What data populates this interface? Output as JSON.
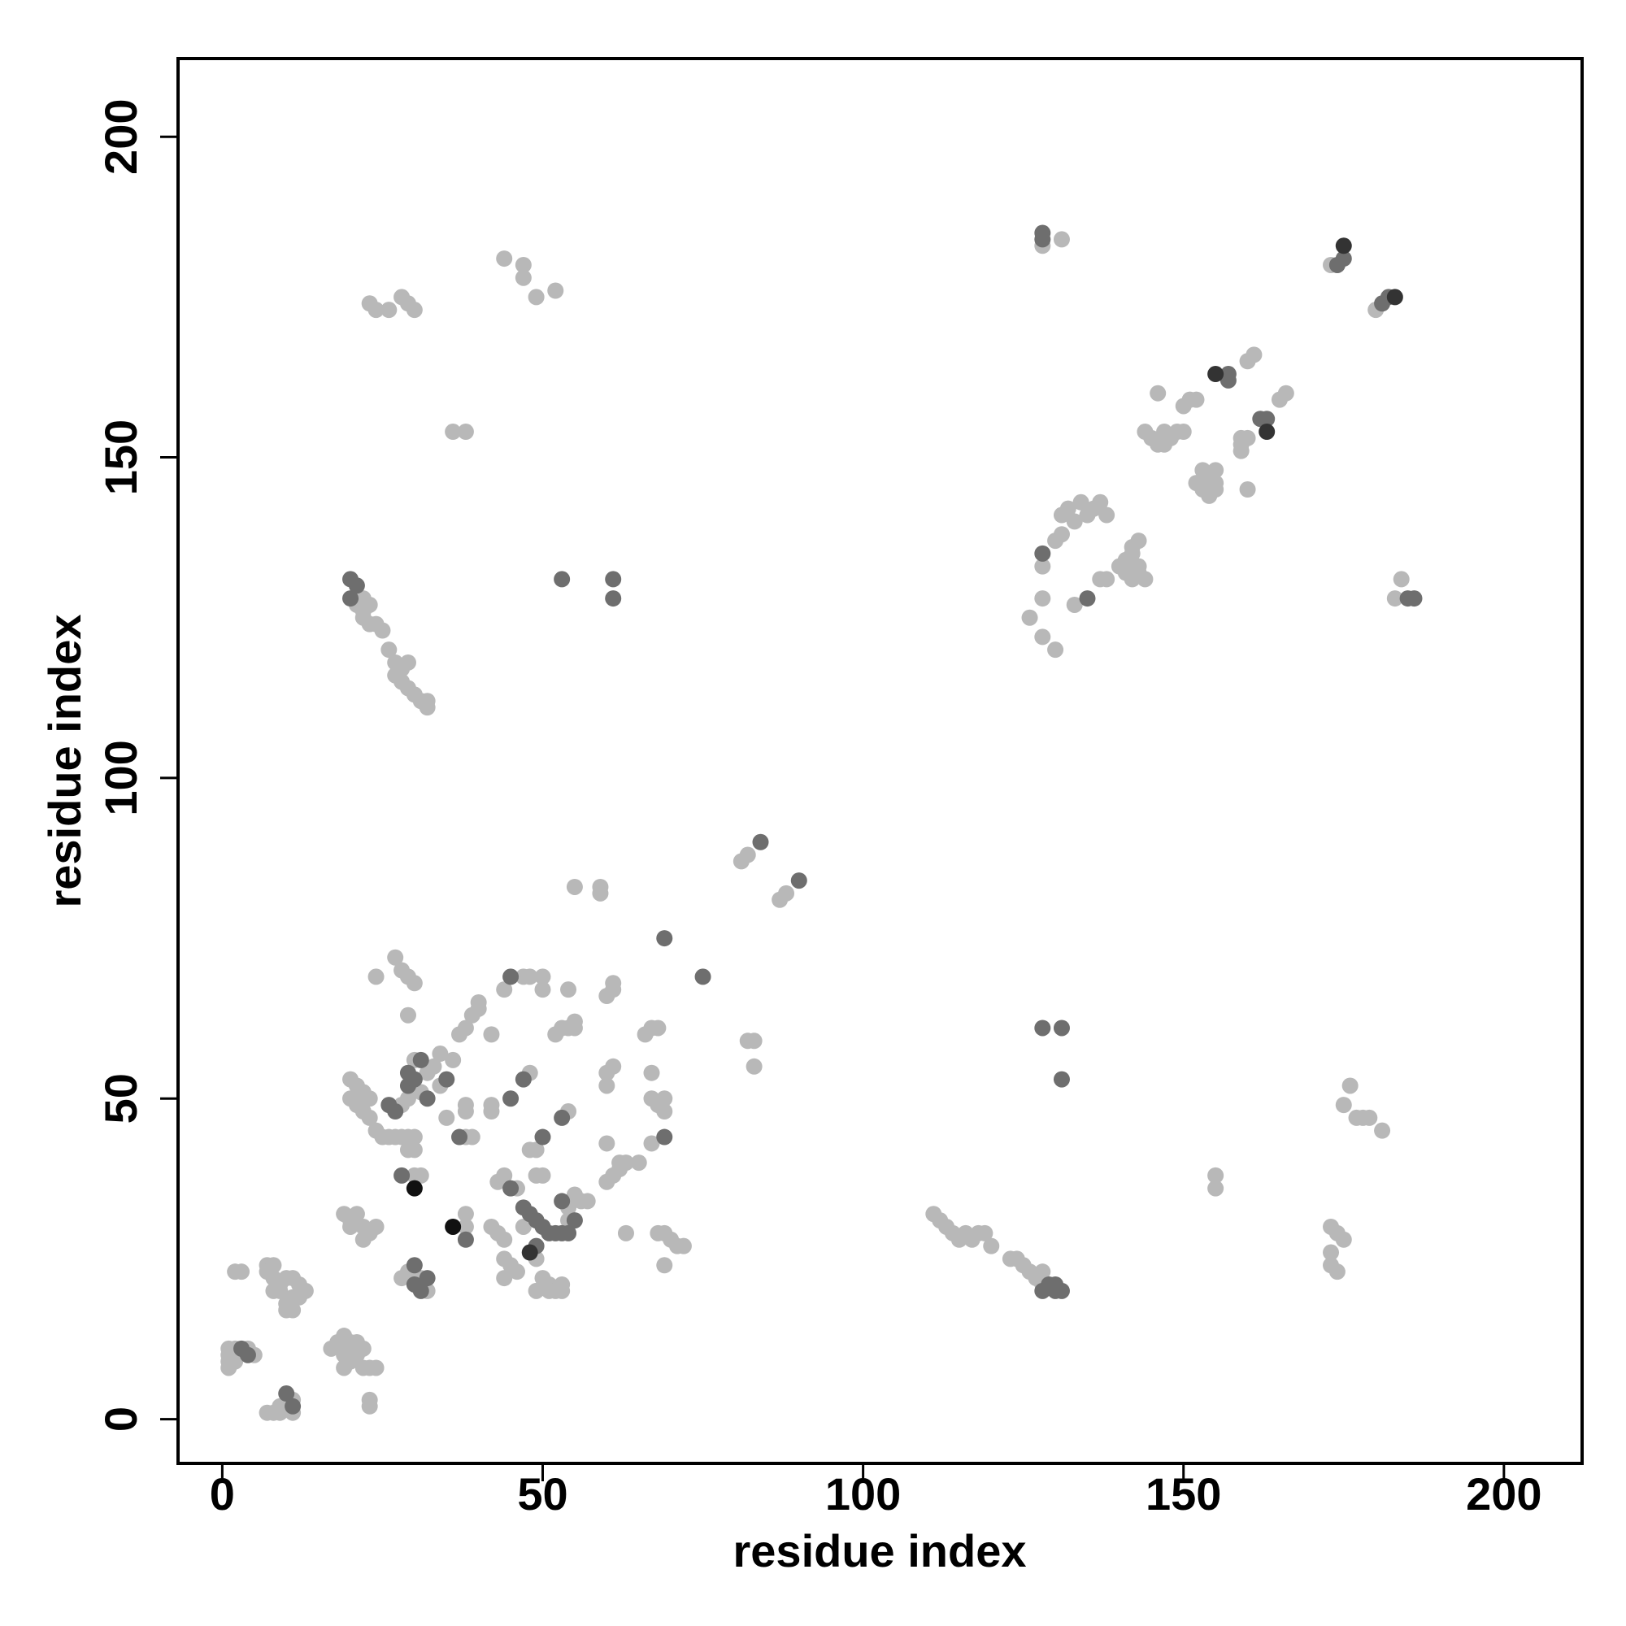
{
  "chart_data": {
    "type": "scatter",
    "xlabel": "residue index",
    "ylabel": "residue index",
    "xlim": [
      -6.9,
      212.2
    ],
    "ylim": [
      -6.9,
      212.2
    ],
    "xticks": [
      0,
      50,
      100,
      150,
      200
    ],
    "yticks": [
      0,
      50,
      100,
      150,
      200
    ],
    "grid": false,
    "series": [
      {
        "color": "#b8b8b8",
        "x": [
          1,
          1,
          1,
          1,
          2,
          2,
          4,
          5,
          2,
          3,
          7,
          8,
          9,
          9,
          11,
          11,
          7,
          8,
          7,
          8,
          9,
          10,
          11,
          12,
          13,
          12,
          10,
          11,
          9,
          8,
          10,
          11,
          17,
          18,
          19,
          20,
          19,
          20,
          21,
          22,
          23,
          24,
          21,
          22,
          19,
          23,
          23,
          19,
          20,
          21,
          22,
          23,
          22,
          24,
          20,
          20,
          21,
          20,
          21,
          22,
          23,
          24,
          23,
          22,
          25,
          26,
          27,
          28,
          29,
          30,
          28,
          29,
          31,
          33,
          32,
          34,
          34,
          35,
          36,
          30,
          29,
          30,
          30,
          31,
          27,
          28,
          29,
          30,
          29,
          24,
          28,
          29,
          31,
          32,
          38,
          38,
          38,
          39,
          38,
          38,
          37,
          38,
          39,
          40,
          40,
          42,
          44,
          42,
          42,
          48,
          43,
          44,
          46,
          42,
          43,
          44,
          44,
          45,
          46,
          44,
          47,
          49,
          50,
          51,
          52,
          53,
          49,
          51,
          53,
          54,
          55,
          56,
          57,
          54,
          49,
          50,
          48,
          49,
          54,
          52,
          53,
          54,
          55,
          47,
          48,
          50,
          50,
          54,
          55,
          55,
          59,
          59,
          60,
          61,
          61,
          60,
          60,
          61,
          60,
          60,
          61,
          62,
          62,
          63,
          65,
          63,
          66,
          67,
          68,
          67,
          67,
          68,
          69,
          69,
          67,
          68,
          69,
          70,
          71,
          72,
          69,
          81,
          82,
          87,
          88,
          82,
          83,
          83,
          36,
          38,
          21,
          22,
          23,
          22,
          22,
          23,
          24,
          25,
          26,
          27,
          28,
          29,
          27,
          28,
          29,
          30,
          31,
          32,
          32,
          23,
          24,
          26,
          28,
          29,
          30,
          44,
          47,
          47,
          49,
          52,
          128,
          131,
          173,
          180,
          160,
          161,
          165,
          166,
          159,
          160,
          159,
          159,
          160,
          150,
          151,
          152,
          146,
          144,
          145,
          146,
          147,
          148,
          149,
          150,
          147,
          153,
          154,
          155,
          153,
          154,
          155,
          152,
          155,
          126,
          128,
          130,
          128,
          128,
          130,
          131,
          131,
          132,
          133,
          134,
          135,
          136,
          137,
          138,
          133,
          137,
          138,
          140,
          141,
          141,
          142,
          142,
          143,
          142,
          143,
          144,
          143,
          184,
          183,
          111,
          112,
          113,
          114,
          115,
          116,
          117,
          118,
          119,
          120,
          123,
          124,
          125,
          126,
          127,
          128,
          128,
          155,
          155,
          176,
          175,
          177,
          178,
          179,
          181,
          173,
          174,
          175,
          173,
          173,
          174
        ],
        "y": [
          11,
          10,
          9,
          8,
          11,
          9,
          11,
          10,
          23,
          23,
          1,
          1,
          1,
          2,
          3,
          1,
          24,
          24,
          23,
          22,
          21,
          22,
          22,
          21,
          20,
          19,
          18,
          19,
          20,
          20,
          17,
          17,
          11,
          12,
          13,
          12,
          10,
          9,
          10,
          8,
          8,
          8,
          12,
          11,
          8,
          3,
          2,
          32,
          31,
          32,
          30,
          29,
          28,
          30,
          30,
          53,
          52,
          50,
          49,
          48,
          47,
          45,
          50,
          51,
          44,
          44,
          44,
          44,
          44,
          44,
          49,
          50,
          51,
          55,
          54,
          57,
          52,
          47,
          56,
          56,
          42,
          42,
          38,
          38,
          72,
          70,
          69,
          68,
          63,
          69,
          22,
          23,
          22,
          20,
          30,
          32,
          44,
          44,
          48,
          49,
          60,
          61,
          63,
          64,
          65,
          60,
          67,
          48,
          49,
          54,
          37,
          38,
          36,
          30,
          29,
          28,
          25,
          24,
          23,
          22,
          30,
          25,
          22,
          21,
          20,
          21,
          20,
          20,
          20,
          31,
          35,
          34,
          34,
          33,
          38,
          38,
          42,
          42,
          48,
          60,
          61,
          61,
          61,
          69,
          69,
          69,
          67,
          67,
          62,
          83,
          83,
          82,
          66,
          67,
          68,
          52,
          54,
          55,
          43,
          37,
          38,
          39,
          40,
          40,
          40,
          29,
          60,
          61,
          61,
          54,
          50,
          49,
          48,
          50,
          43,
          29,
          29,
          28,
          27,
          27,
          24,
          87,
          88,
          81,
          82,
          59,
          59,
          55,
          154,
          154,
          127,
          128,
          127,
          126,
          125,
          124,
          124,
          123,
          120,
          118,
          117,
          118,
          116,
          115,
          114,
          113,
          112,
          112,
          111,
          174,
          173,
          173,
          175,
          174,
          173,
          181,
          180,
          178,
          175,
          176,
          183,
          184,
          180,
          173,
          165,
          166,
          159,
          160,
          153,
          153,
          151,
          152,
          145,
          158,
          159,
          159,
          160,
          154,
          153,
          152,
          152,
          153,
          154,
          154,
          154,
          148,
          147,
          146,
          145,
          144,
          145,
          146,
          148,
          125,
          128,
          120,
          122,
          133,
          137,
          138,
          141,
          142,
          140,
          143,
          141,
          142,
          143,
          141,
          127,
          131,
          131,
          133,
          132,
          134,
          135,
          136,
          137,
          131,
          132,
          131,
          133,
          131,
          128,
          32,
          31,
          30,
          29,
          28,
          29,
          28,
          29,
          29,
          27,
          25,
          25,
          24,
          23,
          22,
          21,
          23,
          38,
          36,
          52,
          49,
          47,
          47,
          47,
          45,
          30,
          29,
          28,
          26,
          24,
          23
        ]
      },
      {
        "color": "#6e6e6e",
        "x": [
          3,
          4,
          10,
          11,
          26,
          27,
          29,
          29,
          30,
          31,
          32,
          35,
          28,
          30,
          30,
          31,
          32,
          38,
          37,
          45,
          45,
          47,
          45,
          47,
          48,
          49,
          50,
          51,
          52,
          53,
          54,
          55,
          49,
          53,
          50,
          53,
          69,
          69,
          75,
          84,
          90,
          20,
          21,
          20,
          53,
          61,
          61,
          128,
          128,
          175,
          174,
          181,
          182,
          157,
          157,
          162,
          163,
          128,
          135,
          185,
          186,
          128,
          129,
          130,
          130,
          131,
          128,
          131,
          131
        ],
        "y": [
          11,
          10,
          4,
          2,
          49,
          48,
          52,
          54,
          53,
          56,
          50,
          53,
          38,
          24,
          21,
          20,
          22,
          28,
          44,
          69,
          50,
          53,
          36,
          33,
          32,
          31,
          30,
          29,
          29,
          29,
          29,
          31,
          27,
          34,
          44,
          47,
          44,
          75,
          69,
          90,
          84,
          131,
          130,
          128,
          131,
          131,
          128,
          185,
          184,
          181,
          180,
          174,
          175,
          163,
          162,
          156,
          156,
          135,
          128,
          128,
          128,
          20,
          21,
          21,
          20,
          20,
          61,
          61,
          53
        ]
      },
      {
        "color": "#333333",
        "x": [
          48,
          175,
          183,
          155,
          163
        ],
        "y": [
          26,
          183,
          175,
          163,
          154
        ]
      },
      {
        "color": "#111111",
        "x": [
          30,
          36
        ],
        "y": [
          36,
          30
        ]
      }
    ]
  }
}
